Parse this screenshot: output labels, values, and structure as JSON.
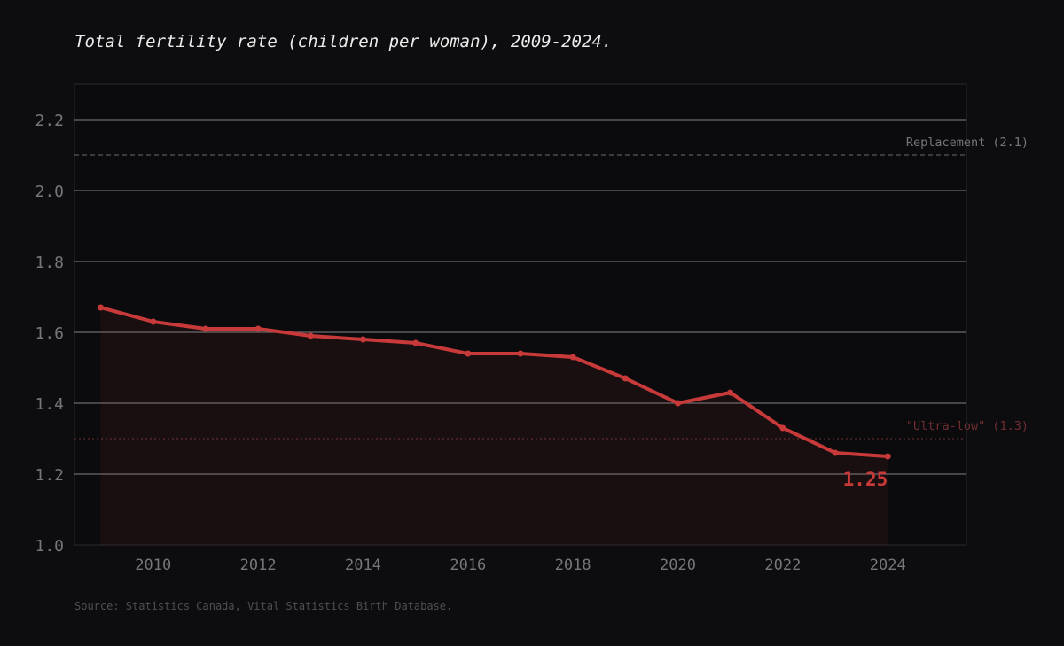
{
  "chart_data": {
    "type": "line",
    "title": "Total fertility rate (children per woman), 2009-2024.",
    "source": "Source: Statistics Canada, Vital Statistics Birth Database.",
    "xlabel": "",
    "ylabel": "",
    "x": [
      2009,
      2010,
      2011,
      2012,
      2013,
      2014,
      2015,
      2016,
      2017,
      2018,
      2019,
      2020,
      2021,
      2022,
      2023,
      2024
    ],
    "series": [
      {
        "name": "Total fertility rate",
        "values": [
          1.67,
          1.63,
          1.61,
          1.61,
          1.59,
          1.58,
          1.57,
          1.54,
          1.54,
          1.53,
          1.47,
          1.4,
          1.43,
          1.33,
          1.26,
          1.25
        ],
        "color": "#c83a3a"
      }
    ],
    "xlim": [
      2008.5,
      2025.5
    ],
    "ylim": [
      1.0,
      2.3
    ],
    "xticks": [
      "2010",
      "2012",
      "2014",
      "2016",
      "2018",
      "2020",
      "2022",
      "2024"
    ],
    "yticks": [
      "1.0",
      "1.2",
      "1.4",
      "1.6",
      "1.8",
      "2.0",
      "2.2"
    ],
    "grid": true,
    "reference_lines": [
      {
        "label": "Replacement (2.1)",
        "value": 2.1,
        "color": "#5a5a5e",
        "style": "dashed"
      },
      {
        "label": "\"Ultra-low\" (1.3)",
        "value": 1.3,
        "color": "#5a2a2c",
        "style": "dotted"
      }
    ],
    "annotation": {
      "text": "1.25",
      "x": 2024,
      "y": 1.25
    }
  }
}
